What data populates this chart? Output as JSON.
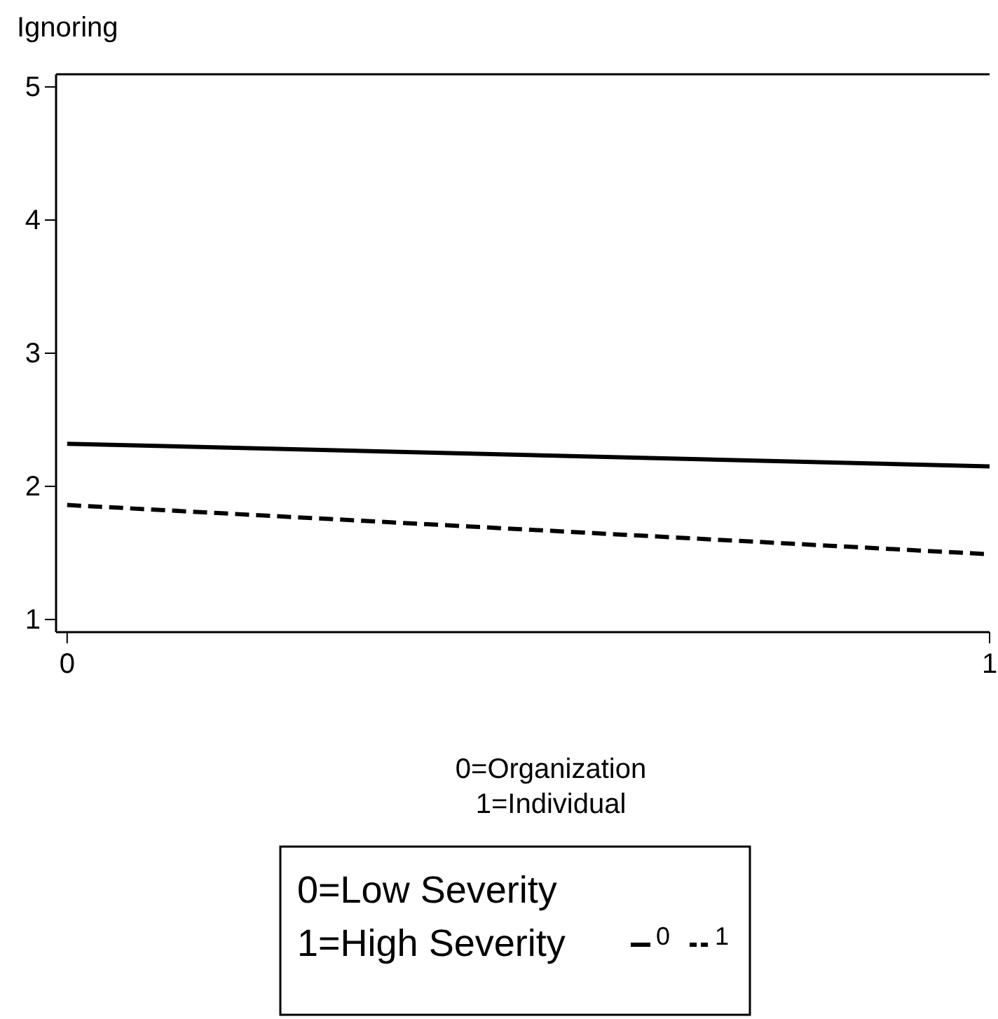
{
  "chart_data": {
    "type": "line",
    "ylabel": "Ignoring",
    "xlabel": "0=Organization\n1=Individual",
    "legend_title": "0=Low Severity\n1=High Severity",
    "x": [
      0,
      1
    ],
    "xlim": [
      -0.012,
      1
    ],
    "xticks": [
      0,
      1
    ],
    "ylim": [
      0.905,
      5.095
    ],
    "yticks": [
      1,
      2,
      3,
      4,
      5
    ],
    "grid": false,
    "legend": "bottom",
    "series": [
      {
        "name": "0",
        "color": "#000000",
        "line_style": "solid",
        "values": [
          2.32,
          2.15
        ]
      },
      {
        "name": "1",
        "color": "#000000",
        "line_style": "dashed",
        "values": [
          1.86,
          1.49
        ]
      }
    ]
  }
}
